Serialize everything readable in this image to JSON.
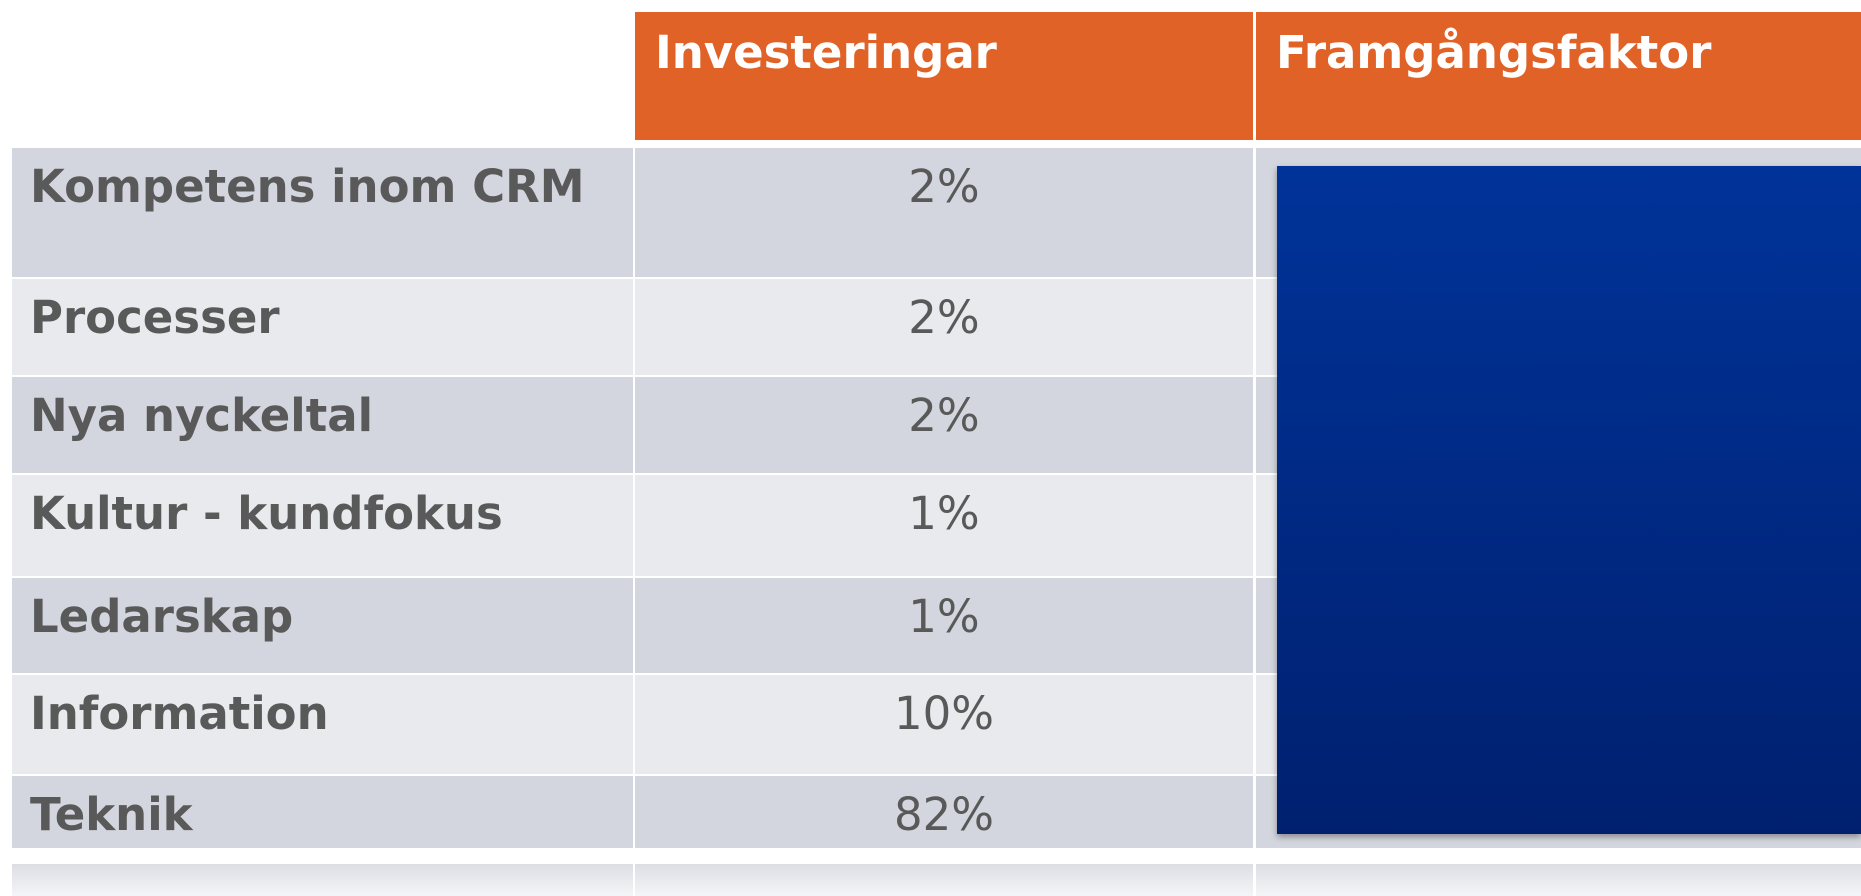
{
  "table": {
    "columns": [
      "Investeringar",
      "Framgångsfaktor"
    ],
    "rows": [
      [
        "Kompetens inom CRM",
        "2%"
      ],
      [
        "Processer",
        "2%"
      ],
      [
        "Nya nyckeltal",
        "2%"
      ],
      [
        "Kultur - kundfokus",
        "1%"
      ],
      [
        "Ledarskap",
        "1%"
      ],
      [
        "Information",
        "10%"
      ],
      [
        "Teknik",
        "82%"
      ]
    ]
  }
}
